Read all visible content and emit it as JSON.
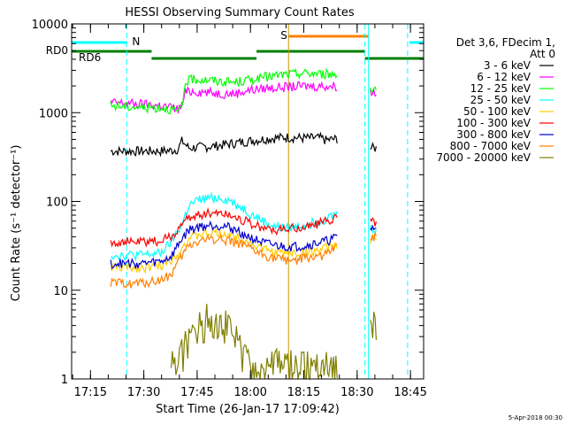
{
  "chart_data": {
    "type": "line",
    "title": "HESSI Observing Summary Count Rates",
    "xlabel": "Start Time (26-Jan-17 17:09:42)",
    "ylabel": "Count Rate (s⁻¹ detector⁻¹)",
    "x_unit": "minutes since 17:09:42",
    "xlim": [
      0,
      99
    ],
    "ylim": [
      1,
      10000
    ],
    "yscale": "log",
    "x_ticks": [
      "17:15",
      "17:30",
      "17:45",
      "18:00",
      "18:15",
      "18:30",
      "18:45"
    ],
    "y_ticks": [
      "1",
      "10",
      "100",
      "1000",
      "10000"
    ],
    "legend_header": [
      "Det 3,6, FDecim 1,",
      "Att 0"
    ],
    "legend_position": "right",
    "footer_date": "5-Apr-2018 00:30",
    "flags": {
      "N_label": "N",
      "S_label": "S",
      "RD0_label": "RD0",
      "RD6_label": "RD6",
      "N_color": "#00ffff",
      "S_color": "#ff8000",
      "RD_color": "#007f00",
      "N_segments": [
        [
          0,
          15.5
        ],
        [
          95,
          99
        ]
      ],
      "S_segments": [
        [
          61,
          83.5
        ]
      ],
      "RD0_segments": [
        [
          0,
          22.5
        ],
        [
          52,
          82.5
        ]
      ],
      "RD6_segments": [
        [
          22.5,
          52
        ],
        [
          82.5,
          99
        ]
      ]
    },
    "vertical_lines": [
      {
        "x": 15.5,
        "color": "#00ffff",
        "style": "dashed"
      },
      {
        "x": 82.5,
        "color": "#00ffff",
        "style": "dashed"
      },
      {
        "x": 94.5,
        "color": "#00ffff",
        "style": "dashed"
      },
      {
        "x": 61,
        "color": "#c89600",
        "style": "solid"
      },
      {
        "x": 83.5,
        "color": "#00ffff",
        "style": "solid"
      }
    ],
    "series": [
      {
        "name": "3 - 6 keV",
        "color": "#000000",
        "x": [
          11,
          15,
          20,
          25,
          28,
          30,
          31,
          33,
          36,
          40,
          45,
          50,
          55,
          60,
          65,
          70,
          75,
          71.5,
          84,
          86
        ],
        "y": [
          370,
          370,
          370,
          370,
          375,
          390,
          480,
          400,
          410,
          420,
          450,
          480,
          510,
          530,
          520,
          520,
          510,
          490,
          400,
          400
        ]
      },
      {
        "name": "6 - 12 keV",
        "color": "#ff00ff",
        "x": [
          11,
          15,
          20,
          25,
          28,
          30,
          31,
          32,
          34,
          38,
          42,
          46,
          50,
          55,
          60,
          65,
          70,
          75,
          84,
          86
        ],
        "y": [
          1300,
          1280,
          1250,
          1200,
          1150,
          1100,
          1200,
          1700,
          1750,
          1700,
          1650,
          1650,
          1800,
          1900,
          1950,
          2000,
          2000,
          2000,
          1700,
          1700
        ]
      },
      {
        "name": "12 - 25 keV",
        "color": "#00ff00",
        "x": [
          11,
          15,
          20,
          25,
          28,
          30,
          31,
          32,
          34,
          38,
          42,
          46,
          50,
          55,
          60,
          65,
          70,
          75,
          84,
          86
        ],
        "y": [
          1200,
          1180,
          1150,
          1150,
          1100,
          1000,
          1100,
          2200,
          2400,
          2350,
          2250,
          2200,
          2350,
          2550,
          2700,
          2800,
          2750,
          2700,
          1900,
          1900
        ]
      },
      {
        "name": "25 - 50 keV",
        "color": "#00ffff",
        "x": [
          11,
          15,
          20,
          25,
          28,
          31,
          33,
          36,
          39,
          42,
          45,
          48,
          51,
          54,
          57,
          60,
          63,
          66,
          69,
          72,
          75,
          84,
          86
        ],
        "y": [
          25,
          25,
          25,
          26,
          35,
          55,
          90,
          105,
          110,
          110,
          100,
          85,
          70,
          60,
          52,
          50,
          52,
          55,
          60,
          65,
          75,
          50,
          50
        ]
      },
      {
        "name": "50 - 100 keV",
        "color": "#ffcc00",
        "x": [
          11,
          15,
          20,
          25,
          28,
          31,
          33,
          36,
          39,
          42,
          45,
          48,
          51,
          54,
          57,
          60,
          63,
          66,
          69,
          72,
          75,
          84,
          86
        ],
        "y": [
          18,
          18,
          18,
          19,
          22,
          30,
          38,
          42,
          44,
          44,
          42,
          38,
          33,
          29,
          27,
          26,
          26,
          27,
          28,
          30,
          34,
          38,
          38
        ]
      },
      {
        "name": "100 - 300 keV",
        "color": "#ff0000",
        "x": [
          11,
          15,
          20,
          25,
          28,
          31,
          33,
          36,
          39,
          42,
          45,
          48,
          51,
          54,
          57,
          60,
          63,
          66,
          69,
          72,
          75,
          84,
          86
        ],
        "y": [
          35,
          35,
          35,
          36,
          40,
          55,
          65,
          72,
          75,
          75,
          70,
          63,
          55,
          50,
          48,
          48,
          50,
          52,
          56,
          60,
          70,
          60,
          60
        ]
      },
      {
        "name": "300 - 800 keV",
        "color": "#0000cc",
        "x": [
          11,
          15,
          20,
          25,
          28,
          31,
          33,
          36,
          39,
          42,
          45,
          48,
          51,
          54,
          57,
          60,
          63,
          66,
          69,
          72,
          75,
          84,
          86
        ],
        "y": [
          20,
          20,
          20,
          21,
          24,
          38,
          48,
          52,
          54,
          54,
          50,
          44,
          38,
          34,
          32,
          31,
          31,
          32,
          34,
          36,
          40,
          50,
          50
        ]
      },
      {
        "name": "800 - 7000 keV",
        "color": "#ff8000",
        "x": [
          11,
          15,
          20,
          25,
          28,
          31,
          33,
          36,
          39,
          42,
          45,
          48,
          51,
          54,
          57,
          60,
          63,
          66,
          69,
          72,
          75,
          84,
          86
        ],
        "y": [
          12,
          12,
          12,
          13,
          15,
          24,
          32,
          36,
          38,
          38,
          36,
          32,
          28,
          25,
          23,
          22,
          22,
          23,
          24,
          26,
          30,
          40,
          40
        ]
      },
      {
        "name": "7000 - 20000 keV",
        "color": "#7f7f00",
        "x": [
          28,
          31,
          33,
          36,
          38,
          40,
          42,
          44,
          46,
          48,
          50,
          52,
          56,
          60,
          64,
          68,
          72,
          75,
          84,
          86
        ],
        "y": [
          1.5,
          2,
          3,
          4,
          5,
          5,
          5,
          4,
          3,
          2,
          1.5,
          1.2,
          1.5,
          1.5,
          1.4,
          1.5,
          1.5,
          1.4,
          4,
          4
        ]
      }
    ]
  }
}
